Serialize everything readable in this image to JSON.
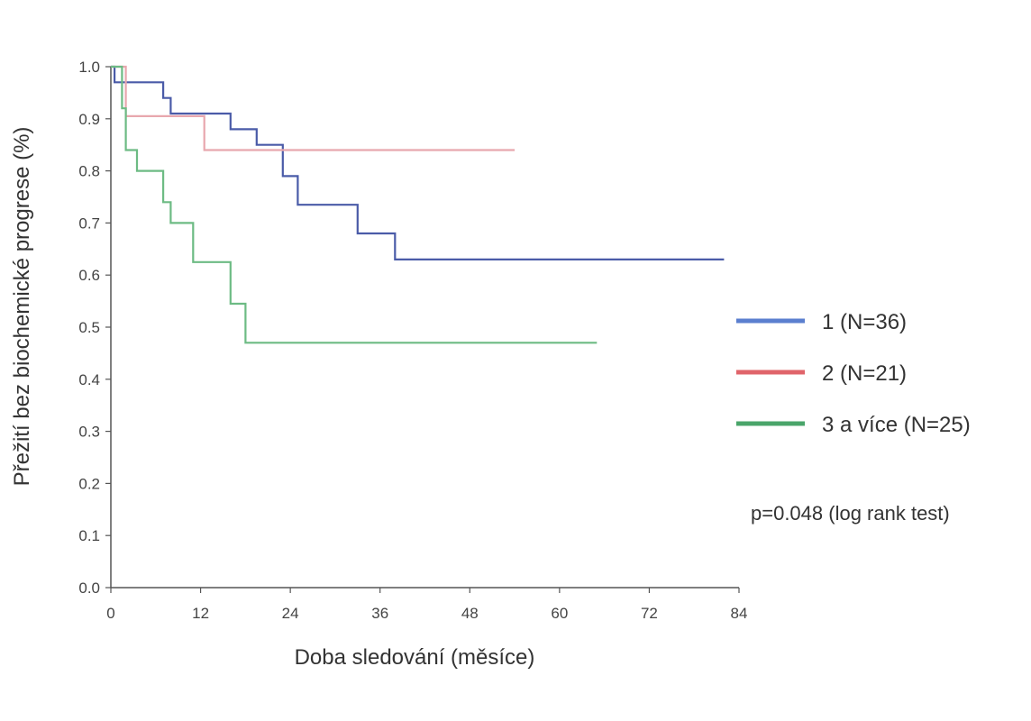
{
  "chart_data": {
    "type": "line",
    "subtype": "kaplan-meier step",
    "xlabel": "Doba sledování (měsíce)",
    "ylabel": "Přežití bez biochemické progrese (%)",
    "xlim": [
      0,
      84
    ],
    "ylim": [
      0.0,
      1.0
    ],
    "xticks": [
      0,
      12,
      24,
      36,
      48,
      60,
      72,
      84
    ],
    "yticks": [
      "0.0",
      "0.1",
      "0.2",
      "0.3",
      "0.4",
      "0.5",
      "0.6",
      "0.7",
      "0.8",
      "0.9",
      "1.0"
    ],
    "grid": false,
    "legend_position": "right",
    "series": [
      {
        "name": "1 (N=36)",
        "color": "#5b7fcf",
        "path_color": "#4a5ba8",
        "x": [
          0,
          0.5,
          0.5,
          7,
          7,
          8,
          8,
          16,
          16,
          19.5,
          19.5,
          23,
          23,
          25,
          25,
          33,
          33,
          38,
          38,
          82
        ],
        "y": [
          1.0,
          1.0,
          0.97,
          0.97,
          0.94,
          0.94,
          0.91,
          0.91,
          0.88,
          0.88,
          0.85,
          0.85,
          0.79,
          0.79,
          0.735,
          0.735,
          0.68,
          0.68,
          0.63,
          0.63
        ]
      },
      {
        "name": "2 (N=21)",
        "color": "#e0646a",
        "path_color": "#e8a7ae",
        "x": [
          0,
          2,
          2,
          12.5,
          12.5,
          54
        ],
        "y": [
          1.0,
          1.0,
          0.905,
          0.905,
          0.84,
          0.84
        ]
      },
      {
        "name": "3 a více (N=25)",
        "color": "#4aa56a",
        "path_color": "#6dbb84",
        "x": [
          0,
          1.5,
          1.5,
          2,
          2,
          3.5,
          3.5,
          7,
          7,
          8,
          8,
          11,
          11,
          16,
          16,
          18,
          18,
          65
        ],
        "y": [
          1.0,
          1.0,
          0.92,
          0.92,
          0.84,
          0.84,
          0.8,
          0.8,
          0.74,
          0.74,
          0.7,
          0.7,
          0.625,
          0.625,
          0.545,
          0.545,
          0.47,
          0.47
        ]
      }
    ],
    "annotation": "p=0.048 (log rank test)"
  }
}
